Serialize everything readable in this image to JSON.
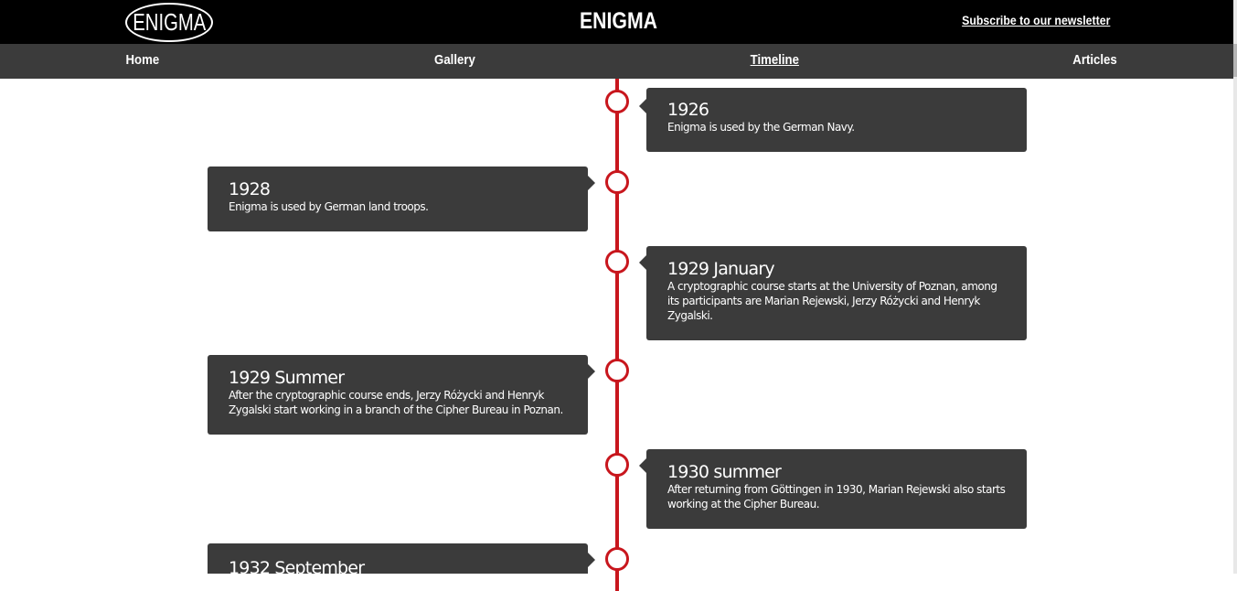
{
  "header": {
    "logo_text": "ENIGMA",
    "title": "ENIGMA",
    "subscribe_label": "Subscribe to our newsletter"
  },
  "nav": {
    "items": [
      {
        "label": "Home",
        "active": false
      },
      {
        "label": "Gallery",
        "active": false
      },
      {
        "label": "Timeline",
        "active": true
      },
      {
        "label": "Articles",
        "active": false
      }
    ]
  },
  "timeline": {
    "events": [
      {
        "year": "1926",
        "desc": "Enigma is used by the German Navy.",
        "side": "right"
      },
      {
        "year": "1928",
        "desc": "Enigma is used by German land troops.",
        "side": "left"
      },
      {
        "year": "1929 January",
        "desc": "A cryptographic course starts at the University of Poznan, among its participants are Marian Rejewski, Jerzy Różycki and Henryk Zygalski.",
        "side": "right"
      },
      {
        "year": "1929 Summer",
        "desc": "After the cryptographic course ends, Jerzy Różycki and Henryk Zygalski start working in a branch of the Cipher Bureau in Poznan.",
        "side": "left"
      },
      {
        "year": "1930 summer",
        "desc": "After returning from Göttingen in 1930, Marian Rejewski also starts working at the Cipher Bureau.",
        "side": "right"
      },
      {
        "year": "1932 September",
        "desc": "",
        "side": "left"
      }
    ]
  },
  "colors": {
    "header_bg": "#000000",
    "nav_bg": "#3b3b3b",
    "card_bg": "#3b3b3b",
    "timeline_accent": "#c8161d"
  }
}
